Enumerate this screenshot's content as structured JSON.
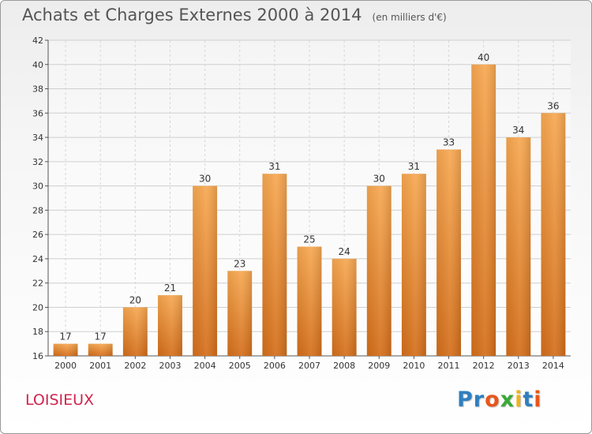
{
  "title": "Achats et Charges Externes 2000 à 2014",
  "subtitle": "(en milliers d'€)",
  "commune": "LOISIEUX",
  "logo": [
    "P",
    "r",
    "o",
    "x",
    "i",
    "t",
    "i"
  ],
  "colors": {
    "bar_light": "#f7a851",
    "bar_dark": "#d46e1a",
    "commune": "#d0244e",
    "logo": [
      "#2f7fc0",
      "#2f7fc0",
      "#e8561b",
      "#39a935",
      "#f0b21b",
      "#2f7fc0",
      "#e8561b"
    ]
  },
  "chart_data": {
    "type": "bar",
    "title": "Achats et Charges Externes 2000 à 2014",
    "subtitle": "(en milliers d'€)",
    "xlabel": "",
    "ylabel": "",
    "categories": [
      "2000",
      "2001",
      "2002",
      "2003",
      "2004",
      "2005",
      "2006",
      "2007",
      "2008",
      "2009",
      "2010",
      "2011",
      "2012",
      "2013",
      "2014"
    ],
    "values": [
      17,
      17,
      20,
      21,
      30,
      23,
      31,
      25,
      24,
      30,
      31,
      33,
      40,
      34,
      36
    ],
    "ylim": [
      16,
      42
    ],
    "yticks": [
      16,
      18,
      20,
      22,
      24,
      26,
      28,
      30,
      32,
      34,
      36,
      38,
      40,
      42
    ],
    "grid": true,
    "legend": "none"
  }
}
